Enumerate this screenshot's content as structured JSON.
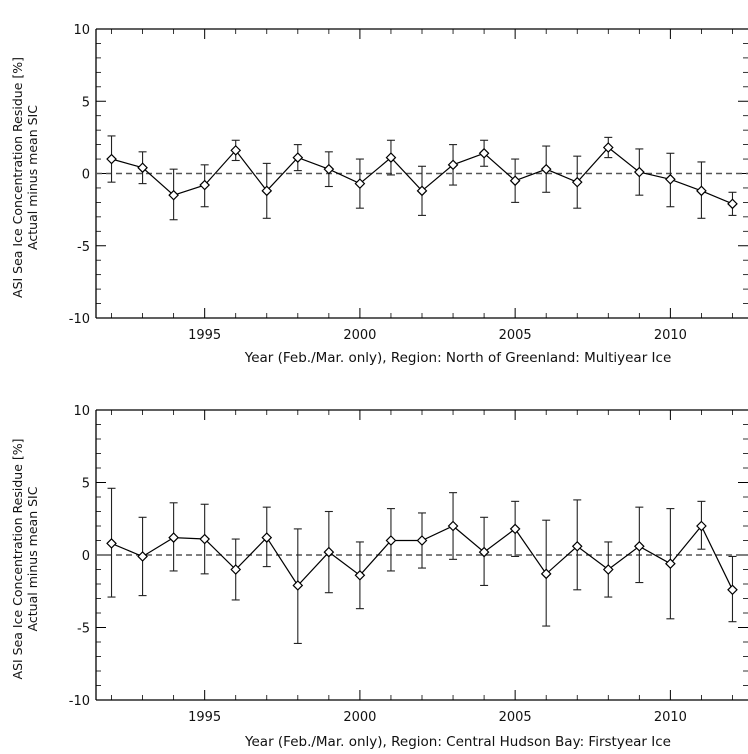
{
  "chart_data": [
    {
      "type": "line",
      "title": "",
      "xlabel": "Year (Feb./Mar. only), Region: North of Greenland: Multiyear Ice",
      "ylabel": [
        "ASI Sea Ice Concentration Residue [%]",
        "Actual minus mean SIC"
      ],
      "xlim": [
        1991.5,
        2012.5
      ],
      "ylim": [
        -10,
        10
      ],
      "xticks": [
        1995,
        2000,
        2005,
        2010
      ],
      "yticks": [
        10,
        5,
        0,
        -5,
        -10
      ],
      "grid": false,
      "reference_line": {
        "y": 0,
        "style": "dashed"
      },
      "series": [
        {
          "marker": "diamond",
          "x": [
            1992,
            1993,
            1994,
            1995,
            1996,
            1997,
            1998,
            1999,
            2000,
            2001,
            2002,
            2003,
            2004,
            2005,
            2006,
            2007,
            2008,
            2009,
            2010,
            2011,
            2012
          ],
          "y": [
            1.0,
            0.4,
            -1.5,
            -0.8,
            1.6,
            -1.2,
            1.1,
            0.3,
            -0.7,
            1.1,
            -1.2,
            0.6,
            1.4,
            -0.5,
            0.3,
            -0.6,
            1.8,
            0.1,
            -0.4,
            -1.2,
            -2.1
          ],
          "y_upper": [
            2.6,
            1.5,
            0.3,
            0.6,
            2.3,
            0.7,
            2.0,
            1.5,
            1.0,
            2.3,
            0.5,
            2.0,
            2.3,
            1.0,
            1.9,
            1.2,
            2.5,
            1.7,
            1.4,
            0.8,
            -1.3
          ],
          "y_lower": [
            -0.6,
            -0.7,
            -3.2,
            -2.3,
            0.9,
            -3.1,
            0.2,
            -0.9,
            -2.4,
            -0.1,
            -2.9,
            -0.8,
            0.5,
            -2.0,
            -1.3,
            -2.4,
            1.1,
            -1.5,
            -2.3,
            -3.1,
            -2.9
          ]
        }
      ]
    },
    {
      "type": "line",
      "title": "",
      "xlabel": "Year (Feb./Mar. only), Region: Central Hudson Bay: Firstyear Ice",
      "ylabel": [
        "ASI Sea Ice Concentration Residue [%]",
        "Actual minus mean SIC"
      ],
      "xlim": [
        1991.5,
        2012.5
      ],
      "ylim": [
        -10,
        10
      ],
      "xticks": [
        1995,
        2000,
        2005,
        2010
      ],
      "yticks": [
        10,
        5,
        0,
        -5,
        -10
      ],
      "grid": false,
      "reference_line": {
        "y": 0,
        "style": "dashed"
      },
      "series": [
        {
          "marker": "diamond",
          "x": [
            1992,
            1993,
            1994,
            1995,
            1996,
            1997,
            1998,
            1999,
            2000,
            2001,
            2002,
            2003,
            2004,
            2005,
            2006,
            2007,
            2008,
            2009,
            2010,
            2011,
            2012
          ],
          "y": [
            0.8,
            -0.1,
            1.2,
            1.1,
            -1.0,
            1.2,
            -2.1,
            0.2,
            -1.4,
            1.0,
            1.0,
            2.0,
            0.2,
            1.8,
            -1.3,
            0.6,
            -1.0,
            0.6,
            -0.6,
            2.0,
            -2.4
          ],
          "y_upper": [
            4.6,
            2.6,
            3.6,
            3.5,
            1.1,
            3.3,
            1.8,
            3.0,
            0.9,
            3.2,
            2.9,
            4.3,
            2.6,
            3.7,
            2.4,
            3.8,
            0.9,
            3.3,
            3.2,
            3.7,
            -0.1
          ],
          "y_lower": [
            -2.9,
            -2.8,
            -1.1,
            -1.3,
            -3.1,
            -0.8,
            -6.1,
            -2.6,
            -3.7,
            -1.1,
            -0.9,
            -0.3,
            -2.1,
            -0.1,
            -4.9,
            -2.4,
            -2.9,
            -1.9,
            -4.4,
            0.4,
            -4.6
          ]
        }
      ]
    }
  ]
}
